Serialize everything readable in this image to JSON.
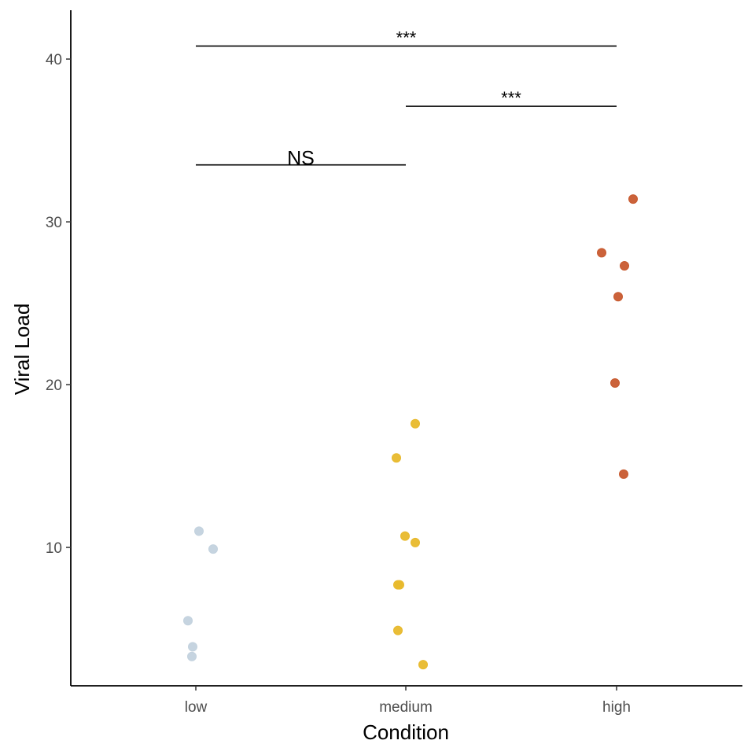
{
  "chart_data": {
    "type": "scatter",
    "title": "",
    "xlabel": "Condition",
    "ylabel": "Viral Load",
    "categories": [
      "low",
      "medium",
      "high"
    ],
    "ylim": [
      1.5,
      43
    ],
    "yticks": [
      10,
      20,
      30,
      40
    ],
    "grid": false,
    "legend": "none",
    "series": [
      {
        "category": "low",
        "color": "#c3d2de",
        "points": [
          {
            "x": "low",
            "y": 11.0
          },
          {
            "x": "low",
            "y": 9.9
          },
          {
            "x": "low",
            "y": 5.5
          },
          {
            "x": "low",
            "y": 3.9
          },
          {
            "x": "low",
            "y": 3.3
          }
        ]
      },
      {
        "category": "medium",
        "color": "#e8b92c",
        "points": [
          {
            "x": "medium",
            "y": 17.6
          },
          {
            "x": "medium",
            "y": 15.5
          },
          {
            "x": "medium",
            "y": 10.7
          },
          {
            "x": "medium",
            "y": 10.3
          },
          {
            "x": "medium",
            "y": 7.7
          },
          {
            "x": "medium",
            "y": 7.7
          },
          {
            "x": "medium",
            "y": 4.9
          },
          {
            "x": "medium",
            "y": 2.8
          }
        ]
      },
      {
        "category": "high",
        "color": "#c85a2f",
        "points": [
          {
            "x": "high",
            "y": 31.4
          },
          {
            "x": "high",
            "y": 28.1
          },
          {
            "x": "high",
            "y": 27.3
          },
          {
            "x": "high",
            "y": 25.4
          },
          {
            "x": "high",
            "y": 20.1
          },
          {
            "x": "high",
            "y": 14.5
          }
        ]
      }
    ],
    "annotations": [
      {
        "from": "low",
        "to": "medium",
        "y": 33.5,
        "label": "NS"
      },
      {
        "from": "medium",
        "to": "high",
        "y": 37.1,
        "label": "***"
      },
      {
        "from": "low",
        "to": "high",
        "y": 40.8,
        "label": "***"
      }
    ]
  }
}
